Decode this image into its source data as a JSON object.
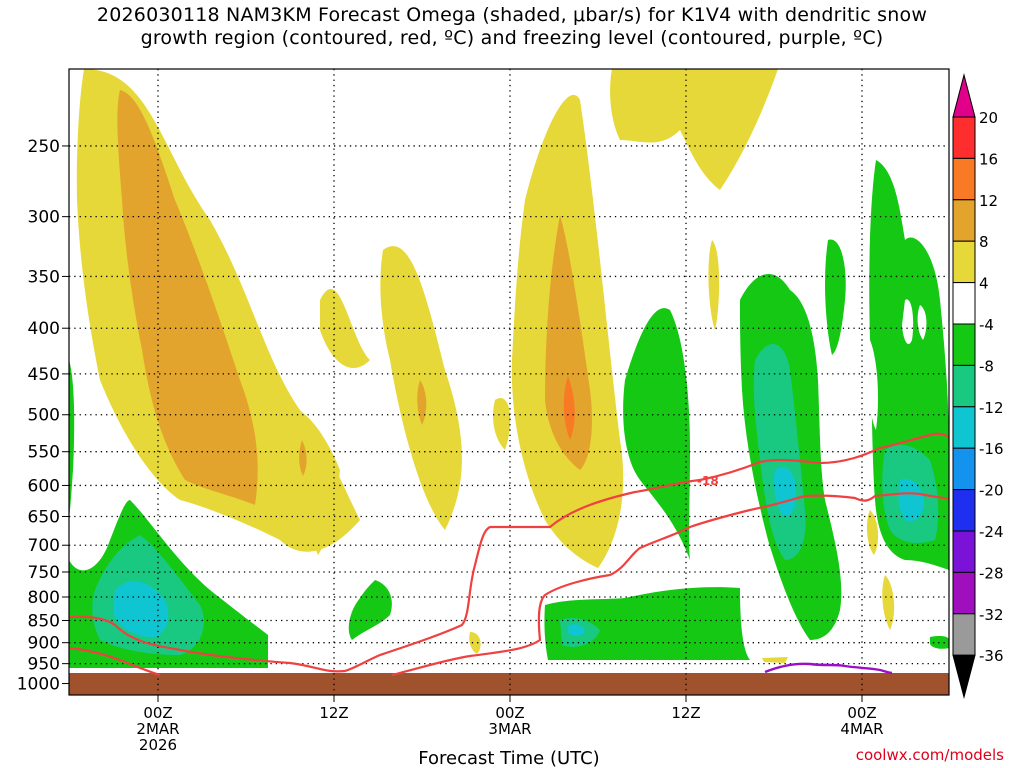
{
  "title": {
    "line1": "2026030118 NAM3KM Forecast Omega (shaded, μbar/s) for K1V4 with dendritic snow",
    "line2": "growth region (contoured, red, ºC) and freezing level (contoured, purple, ºC)"
  },
  "credit": "coolwx.com/models",
  "chart_data": {
    "type": "heatmap",
    "xlabel": "Forecast Time (UTC)",
    "x_ticks": [
      {
        "label": [
          "00Z",
          "2MAR",
          "2026"
        ]
      },
      {
        "label": [
          "12Z"
        ]
      },
      {
        "label": [
          "00Z",
          "3MAR"
        ]
      },
      {
        "label": [
          "12Z"
        ]
      },
      {
        "label": [
          "00Z",
          "4MAR"
        ]
      }
    ],
    "y_ticks": [
      250,
      300,
      350,
      400,
      450,
      500,
      550,
      600,
      650,
      700,
      750,
      800,
      850,
      900,
      950,
      1000
    ],
    "ylabel": "",
    "colorbar": {
      "labels": [
        20,
        16,
        12,
        8,
        4,
        -4,
        -8,
        -12,
        -16,
        -20,
        -24,
        -28,
        -32,
        -36
      ],
      "colors": [
        "#ff2e2e",
        "#f97a25",
        "#e3a42e",
        "#e6d838",
        "#ffffff",
        "#14c814",
        "#19c881",
        "#10c5d2",
        "#1393ee",
        "#1f2ff0",
        "#7a12d8",
        "#a00fbd",
        "#9a9a9a"
      ],
      "top_color": "#e0008a",
      "bottom_color": "#000000"
    },
    "contour_label": "-18",
    "grid": true
  }
}
